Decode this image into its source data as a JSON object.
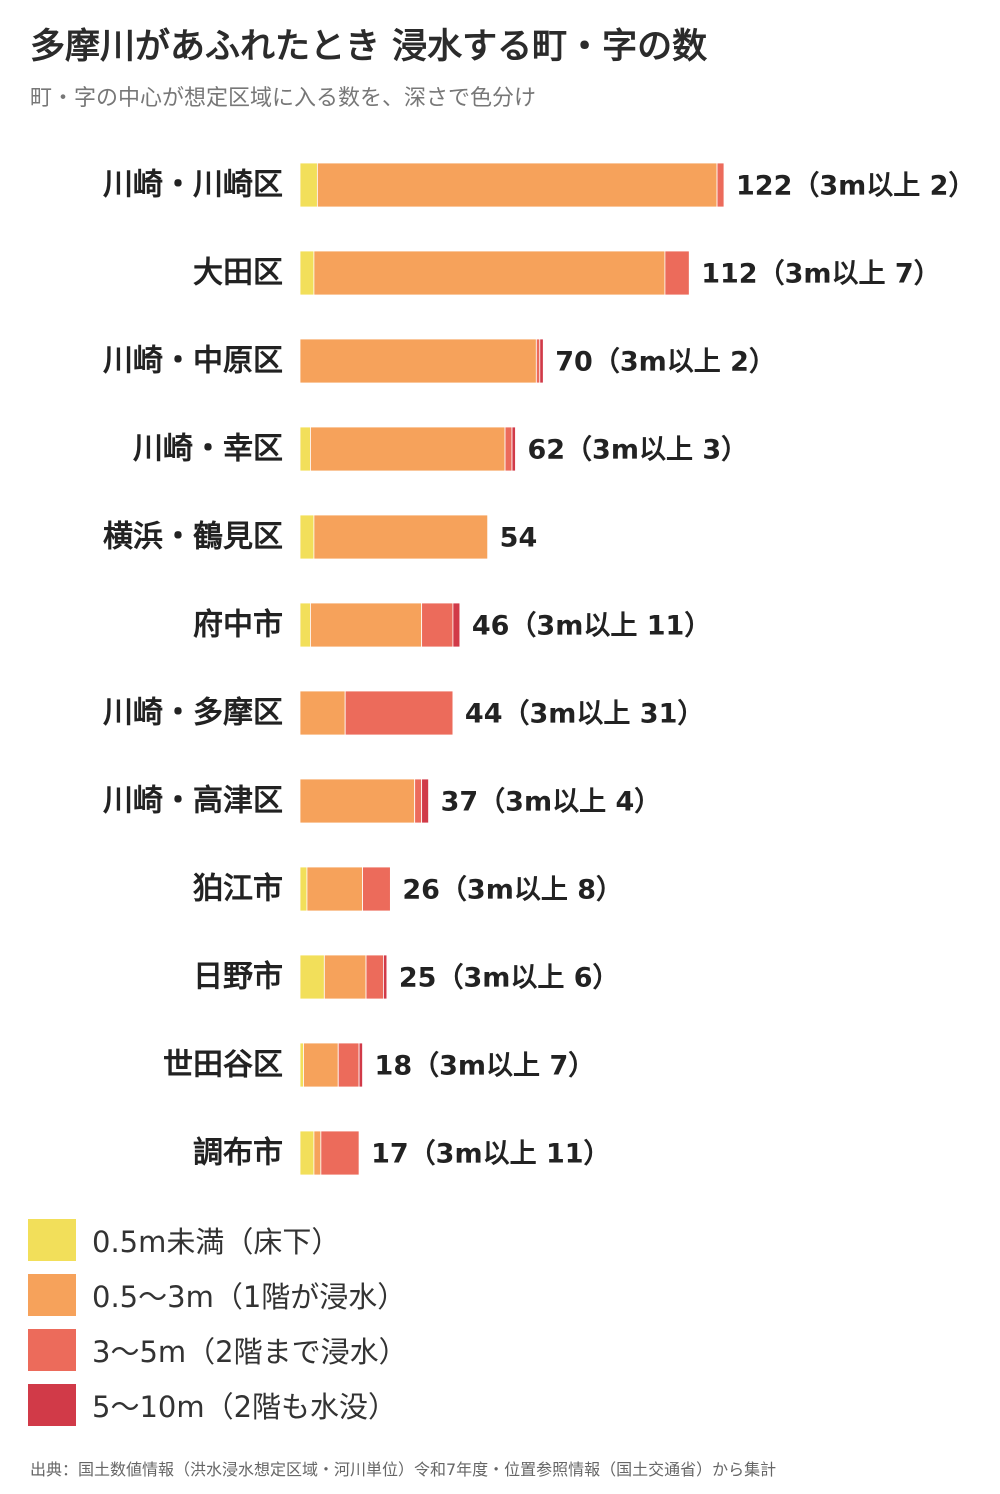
{
  "title": "多摩川があふれたとき 浸水する町・字の数",
  "subtitle": "町・字の中心が想定区域に入る数を、深さで色分け",
  "source": "出典：国土数値情報（洪水浸水想定区域・河川単位）令和7年度・位置参照情報（国土交通省）から集計",
  "colors": {
    "lt05": "#f2df5a",
    "m05_3": "#f6a25b",
    "m3_5": "#ec6b5b",
    "m5_10": "#d13a48"
  },
  "chart_data": {
    "type": "bar",
    "orientation": "horizontal",
    "stacked": true,
    "categories": [
      "川崎・川崎区",
      "大田区",
      "川崎・中原区",
      "川崎・幸区",
      "横浜・鶴見区",
      "府中市",
      "川崎・多摩区",
      "川崎・高津区",
      "狛江市",
      "日野市",
      "世田谷区",
      "調布市"
    ],
    "series": [
      {
        "name": "0.5m未満（床下）",
        "color_key": "lt05",
        "values": [
          5,
          4,
          0,
          3,
          4,
          3,
          0,
          0,
          2,
          7,
          1,
          4
        ]
      },
      {
        "name": "0.5〜3m（1階が浸水）",
        "color_key": "m05_3",
        "values": [
          115,
          101,
          68,
          56,
          50,
          32,
          13,
          33,
          16,
          12,
          10,
          2
        ]
      },
      {
        "name": "3〜5m（2階まで浸水）",
        "color_key": "m3_5",
        "values": [
          2,
          7,
          1,
          2,
          0,
          9,
          31,
          2,
          8,
          5,
          6,
          11
        ]
      },
      {
        "name": "5〜10m（2階も水没）",
        "color_key": "m5_10",
        "values": [
          0,
          0,
          1,
          1,
          0,
          2,
          0,
          2,
          0,
          1,
          1,
          0
        ]
      }
    ],
    "totals": [
      122,
      112,
      70,
      62,
      54,
      46,
      44,
      37,
      26,
      25,
      18,
      17
    ],
    "value_labels": [
      "122（3m以上 2）",
      "112（3m以上 7）",
      "70（3m以上 2）",
      "62（3m以上 3）",
      "54",
      "46（3m以上 11）",
      "44（3m以上 31）",
      "37（3m以上 4）",
      "26（3m以上 8）",
      "25（3m以上 6）",
      "18（3m以上 7）",
      "17（3m以上 11）"
    ],
    "xlim": [
      0,
      122
    ],
    "grid": false,
    "legend_position": "bottom-left"
  }
}
